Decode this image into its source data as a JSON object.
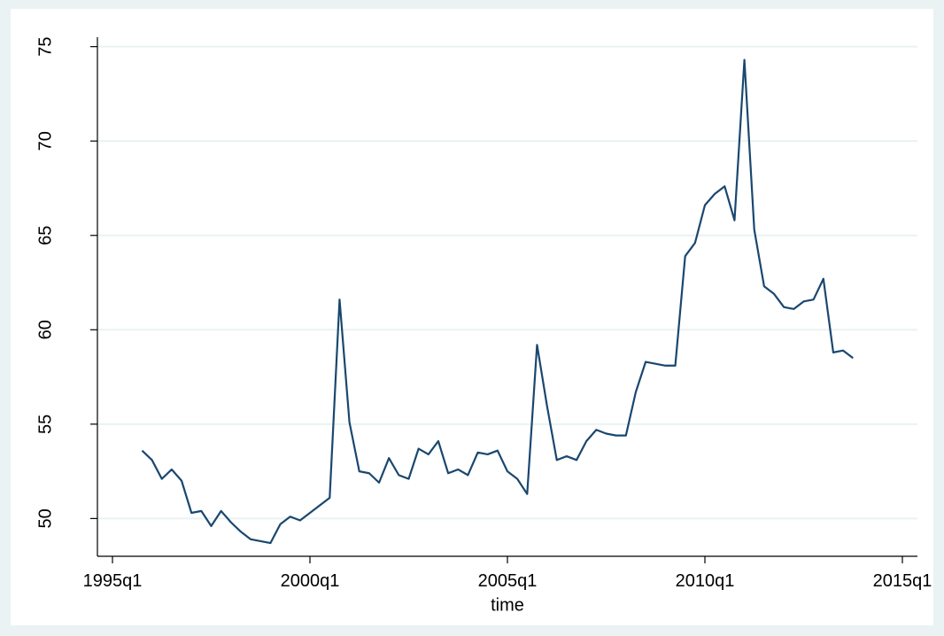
{
  "chart_data": {
    "type": "line",
    "x_label": "time",
    "x": [
      "1995q4",
      "1996q1",
      "1996q2",
      "1996q3",
      "1996q4",
      "1997q1",
      "1997q2",
      "1997q3",
      "1997q4",
      "1998q1",
      "1998q2",
      "1998q3",
      "1998q4",
      "1999q1",
      "1999q2",
      "1999q3",
      "1999q4",
      "2000q1",
      "2000q2",
      "2000q3",
      "2000q4",
      "2001q1",
      "2001q2",
      "2001q3",
      "2001q4",
      "2002q1",
      "2002q2",
      "2002q3",
      "2002q4",
      "2003q1",
      "2003q2",
      "2003q3",
      "2003q4",
      "2004q1",
      "2004q2",
      "2004q3",
      "2004q4",
      "2005q1",
      "2005q2",
      "2005q3",
      "2005q4",
      "2006q1",
      "2006q2",
      "2006q3",
      "2006q4",
      "2007q1",
      "2007q2",
      "2007q3",
      "2007q4",
      "2008q1",
      "2008q2",
      "2008q3",
      "2008q4",
      "2009q1",
      "2009q2",
      "2009q3",
      "2009q4",
      "2010q1",
      "2010q2",
      "2010q3",
      "2010q4",
      "2011q1",
      "2011q2",
      "2011q3",
      "2011q4",
      "2012q1",
      "2012q2",
      "2012q3",
      "2012q4",
      "2013q1",
      "2013q2",
      "2013q3",
      "2013q4"
    ],
    "values": [
      53.6,
      53.1,
      52.1,
      52.6,
      52.0,
      50.3,
      50.4,
      49.6,
      50.4,
      49.8,
      49.3,
      48.9,
      48.8,
      48.7,
      49.7,
      50.1,
      49.9,
      50.3,
      50.7,
      51.1,
      61.6,
      55.1,
      52.5,
      52.4,
      51.9,
      53.2,
      52.3,
      52.1,
      53.7,
      53.4,
      54.1,
      52.4,
      52.6,
      52.3,
      53.5,
      53.4,
      53.6,
      52.5,
      52.1,
      51.3,
      59.2,
      56.0,
      53.1,
      53.3,
      53.1,
      54.1,
      54.7,
      54.5,
      54.4,
      54.4,
      56.7,
      58.3,
      58.2,
      58.1,
      58.1,
      63.9,
      64.6,
      66.6,
      67.2,
      67.6,
      65.8,
      74.3,
      65.3,
      62.3,
      61.9,
      61.2,
      61.1,
      61.5,
      61.6,
      62.7,
      58.8,
      58.9,
      58.5
    ],
    "color": "#1a476f",
    "xlim": [
      "1995q1",
      "2015q1"
    ],
    "xticks": [
      "1995q1",
      "2000q1",
      "2005q1",
      "2010q1",
      "2015q1"
    ],
    "ylim": [
      48,
      75.5
    ],
    "yticks": [
      50,
      55,
      60,
      65,
      70,
      75
    ],
    "grid": true
  }
}
